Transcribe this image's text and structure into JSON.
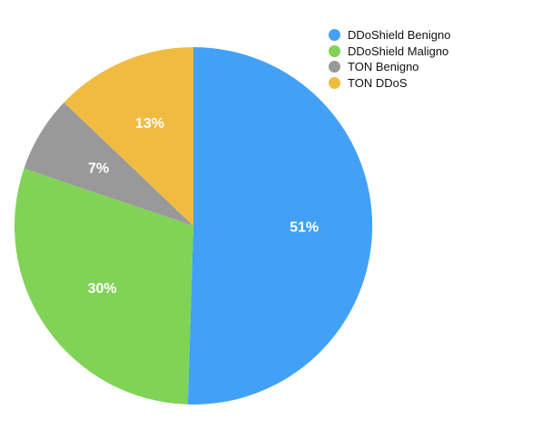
{
  "chart_data": {
    "type": "pie",
    "categories": [
      "DDoShield Benigno",
      "DDoShield Maligno",
      "TON Benigno",
      "TON DDoS"
    ],
    "values": [
      51,
      30,
      7,
      13
    ],
    "labels": [
      "51%",
      "30%",
      "7%",
      "13%"
    ],
    "colors": [
      "#42a1f7",
      "#80d356",
      "#999999",
      "#f1bb42"
    ],
    "title": "",
    "legend_position": "top-right"
  }
}
